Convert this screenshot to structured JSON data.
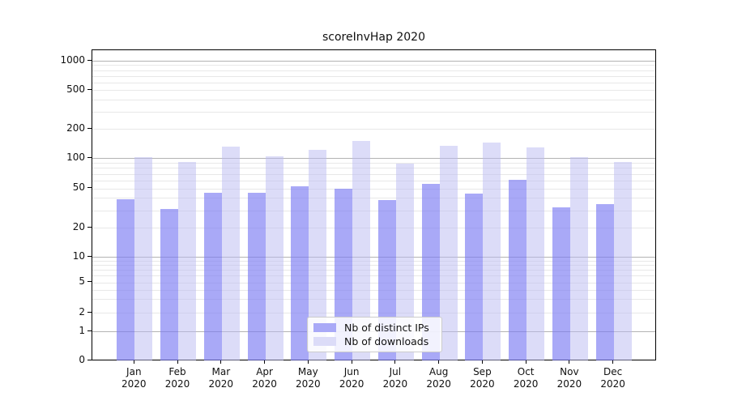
{
  "title": "scoreInvHap 2020",
  "legend": {
    "items": [
      {
        "label": "Nb of distinct IPs",
        "color": "#a9a9f7"
      },
      {
        "label": "Nb of downloads",
        "color": "#dcdcf8"
      }
    ]
  },
  "yaxis": {
    "tick_labels": [
      "1000",
      "500",
      "200",
      "100",
      "50",
      "20",
      "10",
      "5",
      "2",
      "1",
      "0"
    ],
    "tick_values": [
      1000,
      500,
      200,
      100,
      50,
      20,
      10,
      5,
      2,
      1,
      0
    ],
    "major_gridlines": [
      1,
      10,
      100,
      1000
    ],
    "minor_gridlines": [
      2,
      3,
      4,
      5,
      6,
      7,
      8,
      9,
      20,
      30,
      40,
      50,
      60,
      70,
      80,
      90,
      200,
      300,
      400,
      500,
      600,
      700,
      800,
      900
    ]
  },
  "xaxis": {
    "months": [
      "Jan",
      "Feb",
      "Mar",
      "Apr",
      "May",
      "Jun",
      "Jul",
      "Aug",
      "Sep",
      "Oct",
      "Nov",
      "Dec"
    ],
    "year": "2020"
  },
  "chart_data": {
    "type": "bar",
    "title": "scoreInvHap 2020",
    "categories": [
      "Jan 2020",
      "Feb 2020",
      "Mar 2020",
      "Apr 2020",
      "May 2020",
      "Jun 2020",
      "Jul 2020",
      "Aug 2020",
      "Sep 2020",
      "Oct 2020",
      "Nov 2020",
      "Dec 2020"
    ],
    "series": [
      {
        "name": "Nb of distinct IPs",
        "color": "#a9a9f7",
        "values": [
          39,
          31,
          45,
          45,
          53,
          50,
          38,
          56,
          44,
          61,
          32,
          35
        ]
      },
      {
        "name": "Nb of downloads",
        "color": "#dcdcf8",
        "values": [
          103,
          91,
          132,
          104,
          123,
          150,
          89,
          134,
          145,
          129,
          103,
          91
        ]
      }
    ],
    "xlabel": "",
    "ylabel": "",
    "yscale": "log-like with zero baseline; labeled ticks 0,1,2,5,10,20,50,100,200,500,1000",
    "ylim": [
      0,
      1200
    ],
    "grid": "horizontal major decade lines (1,10,100,1000) darker, log minor lines lighter",
    "legend_position": "lower center inside plot"
  }
}
